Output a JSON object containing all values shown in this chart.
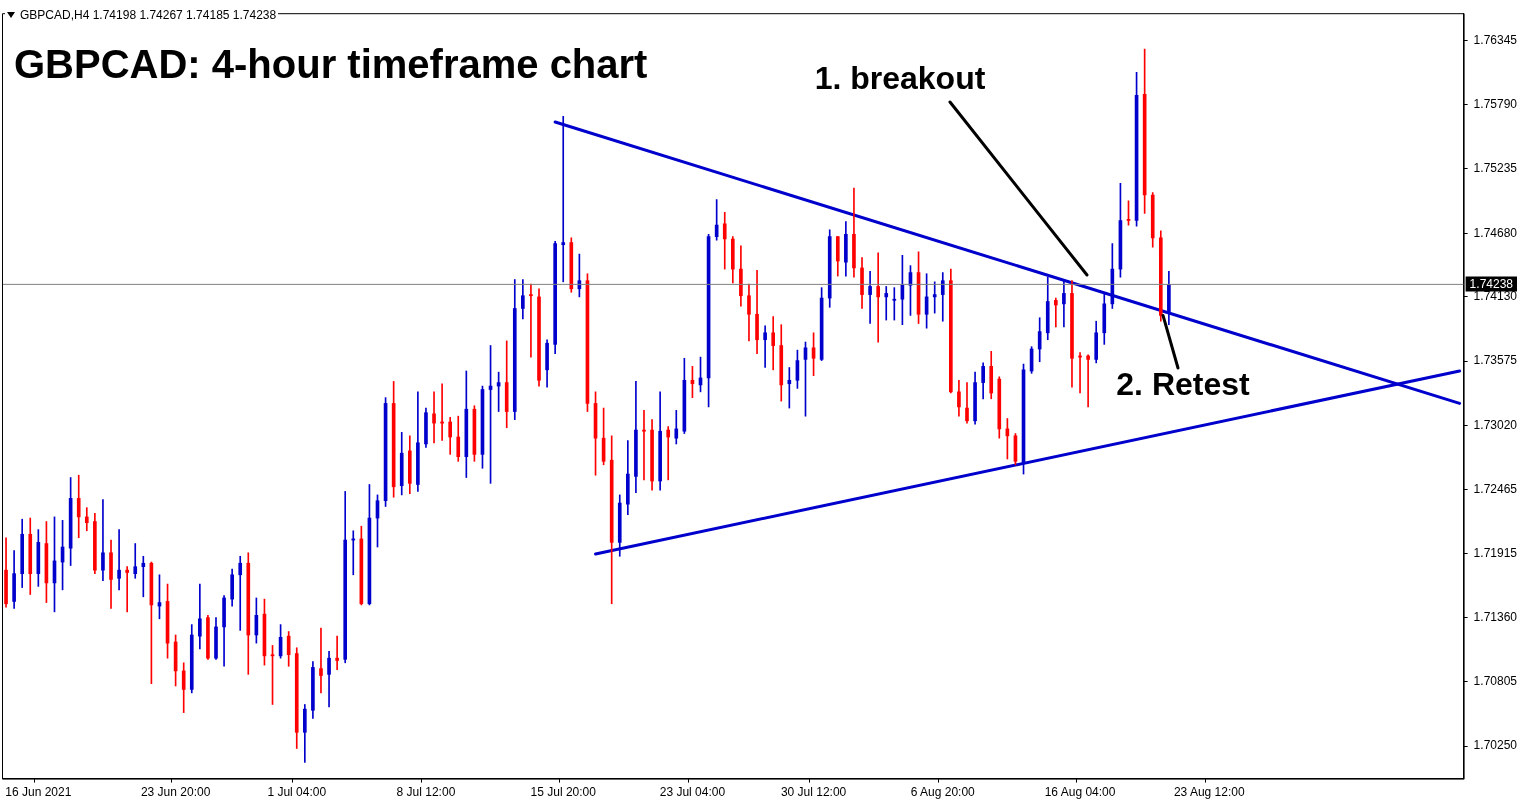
{
  "chart_data": {
    "type": "candlestick",
    "title": "GBPCAD: 4-hour timeframe chart",
    "annotations": [
      "GBPCAD,H4  1.74198 1.74267 1.74185 1.74238",
      "1. breakout",
      {
        "text": "2. Retest",
        "y": 1.7397
      }
    ],
    "categories": [
      null,
      null,
      null,
      null,
      "16 Jun 2021",
      null,
      null,
      null,
      null,
      null,
      null,
      null,
      null,
      null,
      null,
      null,
      null,
      null,
      null,
      null,
      null,
      "23 Jun 20:00",
      null,
      null,
      null,
      null,
      null,
      null,
      null,
      null,
      null,
      null,
      null,
      null,
      null,
      null,
      "1 Jul 04:00",
      null,
      null,
      null,
      null,
      null,
      null,
      null,
      null,
      null,
      null,
      null,
      null,
      null,
      null,
      null,
      "8 Jul 12:00",
      null,
      null,
      null,
      null,
      null,
      null,
      null,
      null,
      null,
      null,
      null,
      null,
      null,
      null,
      null,
      null,
      "15 Jul 20:00",
      null,
      null,
      null,
      null,
      null,
      null,
      null,
      null,
      null,
      null,
      null,
      null,
      null,
      null,
      null,
      "23 Jul 04:00",
      null,
      null,
      null,
      null,
      null,
      null,
      null,
      null,
      null,
      null,
      null,
      null,
      null,
      null,
      "30 Jul 12:00",
      null,
      null,
      null,
      null,
      null,
      null,
      null,
      null,
      null,
      null,
      null,
      null,
      null,
      null,
      null,
      "6 Aug 20:00",
      null,
      null,
      null,
      null,
      null,
      null,
      null,
      null,
      null,
      null,
      null,
      null,
      null,
      null,
      null,
      null,
      "16 Aug 04:00",
      null,
      null,
      null,
      null,
      null,
      null,
      null,
      null,
      null,
      null,
      null,
      null,
      null,
      null,
      null,
      "23 Aug 12:00",
      null,
      null,
      null,
      null,
      null,
      null,
      null,
      null,
      null,
      null,
      null,
      null,
      null,
      null,
      null,
      null,
      null,
      null,
      null,
      null,
      null,
      null,
      null,
      null,
      null,
      null,
      null,
      null,
      null,
      null,
      null
    ],
    "ohlc": [
      [
        1.7177,
        1.7205,
        1.7145,
        1.7148
      ],
      [
        1.715,
        1.7194,
        1.7144,
        1.7174
      ],
      [
        1.7174,
        1.7221,
        1.7162,
        1.7208
      ],
      [
        1.7208,
        1.7222,
        1.7156,
        1.7174
      ],
      [
        1.7174,
        1.7212,
        1.7163,
        1.7201
      ],
      [
        1.72,
        1.7219,
        1.7149,
        1.7166
      ],
      [
        1.7166,
        1.7223,
        1.7141,
        1.7185
      ],
      [
        1.7184,
        1.722,
        1.716,
        1.7197
      ],
      [
        1.7196,
        1.7257,
        1.7181,
        1.7239
      ],
      [
        1.7239,
        1.7259,
        1.7205,
        1.7223
      ],
      [
        1.7223,
        1.7231,
        1.7211,
        1.7218
      ],
      [
        1.7219,
        1.7226,
        1.7174,
        1.7177
      ],
      [
        1.7177,
        1.7238,
        1.7168,
        1.7192
      ],
      [
        1.7192,
        1.7203,
        1.7144,
        1.7169
      ],
      [
        1.717,
        1.7212,
        1.716,
        1.7177
      ],
      [
        1.7177,
        1.718,
        1.7141,
        1.7175
      ],
      [
        1.7174,
        1.72,
        1.717,
        1.718
      ],
      [
        1.718,
        1.7189,
        1.7154,
        1.7183
      ],
      [
        1.7183,
        1.7184,
        1.7079,
        1.7147
      ],
      [
        1.7146,
        1.7173,
        1.7135,
        1.7149
      ],
      [
        1.715,
        1.7165,
        1.7101,
        1.7114
      ],
      [
        1.7115,
        1.7121,
        1.7077,
        1.709
      ],
      [
        1.709,
        1.7097,
        1.7054,
        1.7074
      ],
      [
        1.7074,
        1.713,
        1.7071,
        1.7121
      ],
      [
        1.712,
        1.7165,
        1.7109,
        1.7135
      ],
      [
        1.7136,
        1.7138,
        1.71,
        1.7101
      ],
      [
        1.7101,
        1.7136,
        1.71,
        1.7128
      ],
      [
        1.7128,
        1.7155,
        1.7094,
        1.7153
      ],
      [
        1.7152,
        1.7178,
        1.7146,
        1.7173
      ],
      [
        1.7173,
        1.7189,
        1.7125,
        1.7183
      ],
      [
        1.7183,
        1.7192,
        1.7087,
        1.7121
      ],
      [
        1.7121,
        1.7153,
        1.7114,
        1.7138
      ],
      [
        1.7139,
        1.7152,
        1.7095,
        1.7103
      ],
      [
        1.7104,
        1.7112,
        1.7061,
        1.7103
      ],
      [
        1.7103,
        1.713,
        1.7101,
        1.7119
      ],
      [
        1.712,
        1.7124,
        1.7094,
        1.7104
      ],
      [
        1.7105,
        1.711,
        1.7023,
        1.7037
      ],
      [
        1.7037,
        1.7061,
        1.7011,
        1.7057
      ],
      [
        1.7056,
        1.7098,
        1.7049,
        1.7093
      ],
      [
        1.7092,
        1.7127,
        1.7071,
        1.7086
      ],
      [
        1.7087,
        1.7107,
        1.7059,
        1.7101
      ],
      [
        1.7101,
        1.712,
        1.7091,
        1.7099
      ],
      [
        1.71,
        1.7245,
        1.7097,
        1.7203
      ],
      [
        1.7203,
        1.7211,
        1.7173,
        1.7204
      ],
      [
        1.7204,
        1.7215,
        1.7147,
        1.7148
      ],
      [
        1.7148,
        1.7251,
        1.7147,
        1.7222
      ],
      [
        1.7222,
        1.7242,
        1.7197,
        1.7237
      ],
      [
        1.7237,
        1.7326,
        1.7232,
        1.7321
      ],
      [
        1.7321,
        1.734,
        1.724,
        1.7249
      ],
      [
        1.725,
        1.7296,
        1.7242,
        1.7278
      ],
      [
        1.728,
        1.7293,
        1.7243,
        1.7252
      ],
      [
        1.7251,
        1.7331,
        1.7245,
        1.7287
      ],
      [
        1.7286,
        1.7317,
        1.7283,
        1.7313
      ],
      [
        1.7312,
        1.7331,
        1.7287,
        1.7304
      ],
      [
        1.7305,
        1.7338,
        1.7289,
        1.7304
      ],
      [
        1.7305,
        1.7309,
        1.7277,
        1.7292
      ],
      [
        1.7292,
        1.731,
        1.7271,
        1.7275
      ],
      [
        1.7275,
        1.7349,
        1.7257,
        1.7316
      ],
      [
        1.7316,
        1.7319,
        1.7271,
        1.7277
      ],
      [
        1.7277,
        1.7336,
        1.7265,
        1.7333
      ],
      [
        1.7333,
        1.7371,
        1.7252,
        1.7336
      ],
      [
        1.7336,
        1.7348,
        1.7314,
        1.7339
      ],
      [
        1.7339,
        1.7375,
        1.73,
        1.7314
      ],
      [
        1.7314,
        1.7428,
        1.7307,
        1.7403
      ],
      [
        1.7403,
        1.7428,
        1.7394,
        1.7414
      ],
      [
        1.7415,
        1.7424,
        1.7361,
        1.7414
      ],
      [
        1.7413,
        1.742,
        1.7336,
        1.7341
      ],
      [
        1.735,
        1.7376,
        1.7335,
        1.7373
      ],
      [
        1.7372,
        1.7461,
        1.7364,
        1.7459
      ],
      [
        1.7458,
        1.7569,
        1.7426,
        1.746
      ],
      [
        1.746,
        1.7464,
        1.7417,
        1.742
      ],
      [
        1.742,
        1.745,
        1.7413,
        1.7427
      ],
      [
        1.7427,
        1.7433,
        1.7314,
        1.7321
      ],
      [
        1.7321,
        1.7331,
        1.7259,
        1.7291
      ],
      [
        1.7291,
        1.7317,
        1.7268,
        1.7271
      ],
      [
        1.7272,
        1.7293,
        1.7148,
        1.7201
      ],
      [
        1.7201,
        1.7242,
        1.7189,
        1.7235
      ],
      [
        1.7234,
        1.7289,
        1.7225,
        1.726
      ],
      [
        1.7258,
        1.734,
        1.7244,
        1.7298
      ],
      [
        1.7298,
        1.7315,
        1.7255,
        1.7297
      ],
      [
        1.7298,
        1.7307,
        1.7246,
        1.7254
      ],
      [
        1.7254,
        1.7331,
        1.7246,
        1.7297
      ],
      [
        1.7298,
        1.7301,
        1.7255,
        1.7292
      ],
      [
        1.7291,
        1.7315,
        1.7286,
        1.7299
      ],
      [
        1.7297,
        1.736,
        1.7295,
        1.7341
      ],
      [
        1.7341,
        1.7353,
        1.7326,
        1.7338
      ],
      [
        1.7337,
        1.7361,
        1.7331,
        1.7343
      ],
      [
        1.7343,
        1.7467,
        1.7318,
        1.7465
      ],
      [
        1.7465,
        1.7497,
        1.7462,
        1.7475
      ],
      [
        1.7476,
        1.7486,
        1.7437,
        1.7463
      ],
      [
        1.7463,
        1.7465,
        1.7425,
        1.7437
      ],
      [
        1.7437,
        1.7457,
        1.7405,
        1.7414
      ],
      [
        1.7414,
        1.7424,
        1.7375,
        1.7398
      ],
      [
        1.7398,
        1.7436,
        1.7364,
        1.7376
      ],
      [
        1.7376,
        1.7388,
        1.7352,
        1.7382
      ],
      [
        1.7382,
        1.7396,
        1.735,
        1.7371
      ],
      [
        1.7371,
        1.7389,
        1.7323,
        1.7337
      ],
      [
        1.7338,
        1.7352,
        1.7317,
        1.7341
      ],
      [
        1.7341,
        1.7367,
        1.7334,
        1.7358
      ],
      [
        1.7359,
        1.7374,
        1.731,
        1.7369
      ],
      [
        1.7369,
        1.7382,
        1.7345,
        1.736
      ],
      [
        1.7359,
        1.7421,
        1.7358,
        1.7412
      ],
      [
        1.7412,
        1.7471,
        1.7404,
        1.7465
      ],
      [
        1.7465,
        1.7465,
        1.7431,
        1.7444
      ],
      [
        1.7443,
        1.7478,
        1.7431,
        1.7467
      ],
      [
        1.7467,
        1.7507,
        1.743,
        1.7438
      ],
      [
        1.7438,
        1.7447,
        1.7403,
        1.7415
      ],
      [
        1.7415,
        1.7435,
        1.739,
        1.7422
      ],
      [
        1.7422,
        1.7451,
        1.7374,
        1.7413
      ],
      [
        1.7413,
        1.7422,
        1.7393,
        1.7416
      ],
      [
        1.741,
        1.7421,
        1.7393,
        1.7411
      ],
      [
        1.7411,
        1.7449,
        1.7389,
        1.7423
      ],
      [
        1.7423,
        1.744,
        1.7397,
        1.7434
      ],
      [
        1.7434,
        1.7452,
        1.739,
        1.7398
      ],
      [
        1.7398,
        1.7433,
        1.7386,
        1.7413
      ],
      [
        1.7413,
        1.7426,
        1.7399,
        1.7415
      ],
      [
        1.7415,
        1.7434,
        1.7392,
        1.7427
      ],
      [
        1.7427,
        1.7437,
        1.733,
        1.7331
      ],
      [
        1.7331,
        1.7341,
        1.731,
        1.7318
      ],
      [
        1.7317,
        1.7339,
        1.7304,
        1.7306
      ],
      [
        1.7306,
        1.7348,
        1.7303,
        1.7339
      ],
      [
        1.7339,
        1.7356,
        1.7325,
        1.7353
      ],
      [
        1.7353,
        1.7366,
        1.7325,
        1.733
      ],
      [
        1.7342,
        1.7344,
        1.7291,
        1.7299
      ],
      [
        1.7299,
        1.7308,
        1.7273,
        1.7293
      ],
      [
        1.7293,
        1.7295,
        1.7268,
        1.7271
      ],
      [
        1.7269,
        1.7355,
        1.726,
        1.735
      ],
      [
        1.7349,
        1.737,
        1.7347,
        1.7368
      ],
      [
        1.7368,
        1.7395,
        1.7357,
        1.7383
      ],
      [
        1.7382,
        1.743,
        1.7376,
        1.7409
      ],
      [
        1.741,
        1.7412,
        1.7387,
        1.7406
      ],
      [
        1.7407,
        1.7427,
        1.7387,
        1.7416
      ],
      [
        1.7416,
        1.7427,
        1.7335,
        1.736
      ],
      [
        1.7362,
        1.7365,
        1.733,
        1.7361
      ],
      [
        1.7362,
        1.7363,
        1.7318,
        1.7359
      ],
      [
        1.7359,
        1.7392,
        1.7356,
        1.7382
      ],
      [
        1.7382,
        1.7416,
        1.7372,
        1.7407
      ],
      [
        1.7407,
        1.7459,
        1.7403,
        1.7437
      ],
      [
        1.7437,
        1.7511,
        1.743,
        1.7479
      ],
      [
        1.748,
        1.7496,
        1.7475,
        1.7479
      ],
      [
        1.7479,
        1.7607,
        1.7474,
        1.7587
      ],
      [
        1.7588,
        1.7627,
        1.7485,
        1.7501
      ],
      [
        1.7501,
        1.7503,
        1.7456,
        1.7464
      ],
      [
        1.7464,
        1.747,
        1.7392,
        1.7397
      ],
      [
        1.7399,
        1.7435,
        1.7389,
        1.74238
      ],
      null,
      null,
      null,
      null,
      null,
      null,
      null,
      null,
      null,
      null,
      null,
      null,
      null,
      null,
      null,
      null,
      null,
      null,
      null,
      null,
      null,
      null,
      null,
      null,
      null,
      null,
      null,
      null,
      null,
      null,
      null,
      null,
      null,
      null,
      null,
      null
    ],
    "colors": [
      "#ff0000",
      "#0000cd",
      "#0000cd",
      "#ff0000",
      "#0000cd",
      "#ff0000",
      "#0000cd",
      "#0000cd",
      "#0000cd",
      "#ff0000",
      "#ff0000",
      "#ff0000",
      "#0000cd",
      "#ff0000",
      "#0000cd",
      "#ff0000",
      "#0000cd",
      "#0000cd",
      "#ff0000",
      "#0000cd",
      "#ff0000",
      "#ff0000",
      "#ff0000",
      "#0000cd",
      "#0000cd",
      "#ff0000",
      "#0000cd",
      "#0000cd",
      "#0000cd",
      "#0000cd",
      "#ff0000",
      "#0000cd",
      "#ff0000",
      "#ff0000",
      "#0000cd",
      "#ff0000",
      "#ff0000",
      "#0000cd",
      "#0000cd",
      "#ff0000",
      "#0000cd",
      "#ff0000",
      "#0000cd",
      "#0000cd",
      "#ff0000",
      "#0000cd",
      "#0000cd",
      "#0000cd",
      "#ff0000",
      "#0000cd",
      "#ff0000",
      "#0000cd",
      "#0000cd",
      "#ff0000",
      "#ff0000",
      "#ff0000",
      "#ff0000",
      "#0000cd",
      "#ff0000",
      "#0000cd",
      "#0000cd",
      "#0000cd",
      "#ff0000",
      "#0000cd",
      "#0000cd",
      "#ff0000",
      "#ff0000",
      "#0000cd",
      "#0000cd",
      "#0000cd",
      "#ff0000",
      "#0000cd",
      "#ff0000",
      "#ff0000",
      "#ff0000",
      "#ff0000",
      "#0000cd",
      "#0000cd",
      "#0000cd",
      "#ff0000",
      "#ff0000",
      "#0000cd",
      "#ff0000",
      "#0000cd",
      "#0000cd",
      "#ff0000",
      "#0000cd",
      "#0000cd",
      "#0000cd",
      "#ff0000",
      "#ff0000",
      "#ff0000",
      "#ff0000",
      "#ff0000",
      "#0000cd",
      "#ff0000",
      "#ff0000",
      "#0000cd",
      "#0000cd",
      "#0000cd",
      "#ff0000",
      "#0000cd",
      "#0000cd",
      "#ff0000",
      "#0000cd",
      "#ff0000",
      "#ff0000",
      "#0000cd",
      "#ff0000",
      "#0000cd",
      "#0000cd",
      "#0000cd",
      "#0000cd",
      "#ff0000",
      "#0000cd",
      "#0000cd",
      "#0000cd",
      "#ff0000",
      "#ff0000",
      "#ff0000",
      "#0000cd",
      "#0000cd",
      "#ff0000",
      "#ff0000",
      "#ff0000",
      "#ff0000",
      "#0000cd",
      "#0000cd",
      "#0000cd",
      "#0000cd",
      "#ff0000",
      "#0000cd",
      "#ff0000",
      "#ff0000",
      "#ff0000",
      "#0000cd",
      "#0000cd",
      "#0000cd",
      "#0000cd",
      "#ff0000",
      "#0000cd",
      "#ff0000",
      "#ff0000",
      "#ff0000",
      "#0000cd",
      null,
      null,
      null,
      null,
      null,
      null,
      null,
      null,
      null,
      null,
      null,
      null,
      null,
      null,
      null,
      null,
      null,
      null,
      null,
      null,
      null,
      null,
      null,
      null,
      null,
      null,
      null,
      null,
      null,
      null,
      null,
      null,
      null,
      null,
      null,
      null
    ],
    "series": [
      {
        "type": "line",
        "values": [
          null,
          null,
          null,
          null,
          null,
          null,
          null,
          null,
          null,
          null,
          null,
          null,
          null,
          null,
          null,
          null,
          null,
          null,
          null,
          null,
          null,
          null,
          null,
          null,
          null,
          null,
          null,
          null,
          null,
          null,
          null,
          null,
          null,
          null,
          null,
          null,
          null,
          null,
          null,
          null,
          null,
          null,
          null,
          null,
          null,
          null,
          null,
          null,
          null,
          null,
          null,
          null,
          null,
          null,
          null,
          null,
          null,
          null,
          null,
          null,
          null,
          null,
          null,
          null,
          null,
          null,
          null,
          null,
          1.7564,
          null,
          null,
          null,
          null,
          null,
          null,
          null,
          null,
          null,
          null,
          null,
          null,
          null,
          null,
          null,
          null,
          null,
          null,
          null,
          null,
          null,
          null,
          null,
          null,
          null,
          null,
          null,
          null,
          null,
          null,
          null,
          null,
          null,
          null,
          null,
          null,
          null,
          null,
          null,
          null,
          null,
          null,
          null,
          null,
          null,
          null,
          null,
          null,
          null,
          null,
          null,
          null,
          null,
          null,
          null,
          null,
          null,
          null,
          null,
          null,
          null,
          null,
          null,
          null,
          null,
          null,
          null,
          null,
          null,
          null,
          null,
          null,
          null,
          null,
          null,
          null,
          null,
          null,
          null,
          null,
          null,
          null,
          null,
          null,
          null,
          null,
          null,
          null,
          null,
          null,
          null,
          null,
          null,
          null,
          null,
          null,
          null,
          null,
          null,
          null,
          null,
          null,
          null,
          null,
          null,
          null,
          null,
          null,
          null,
          null,
          null,
          1.7321
        ],
        "color": "#0000cd"
      },
      {
        "type": "line",
        "values": [
          null,
          null,
          null,
          null,
          null,
          null,
          null,
          null,
          null,
          null,
          null,
          null,
          null,
          null,
          null,
          null,
          null,
          null,
          null,
          null,
          null,
          null,
          null,
          null,
          null,
          null,
          null,
          null,
          null,
          null,
          null,
          null,
          null,
          null,
          null,
          null,
          null,
          null,
          null,
          null,
          null,
          null,
          null,
          null,
          null,
          null,
          null,
          null,
          null,
          null,
          null,
          null,
          null,
          null,
          null,
          null,
          null,
          null,
          null,
          null,
          null,
          null,
          null,
          null,
          null,
          null,
          null,
          null,
          null,
          null,
          null,
          null,
          null,
          1.7191,
          null,
          null,
          null,
          null,
          null,
          null,
          null,
          null,
          null,
          null,
          null,
          null,
          null,
          null,
          null,
          null,
          null,
          null,
          null,
          null,
          null,
          null,
          null,
          null,
          null,
          null,
          null,
          null,
          null,
          null,
          null,
          null,
          null,
          null,
          null,
          null,
          null,
          null,
          null,
          null,
          null,
          null,
          null,
          null,
          null,
          null,
          null,
          null,
          null,
          null,
          null,
          null,
          null,
          null,
          null,
          null,
          null,
          null,
          null,
          null,
          null,
          null,
          null,
          null,
          null,
          null,
          null,
          null,
          null,
          null,
          null,
          null,
          null,
          null,
          null,
          null,
          null,
          null,
          null,
          null,
          null,
          null,
          null,
          null,
          null,
          null,
          null,
          null,
          null,
          null,
          null,
          null,
          null,
          null,
          null,
          null,
          null,
          null,
          null,
          null,
          null,
          null,
          null,
          null,
          null,
          null,
          1.7349
        ],
        "color": "#0000cd"
      }
    ],
    "ref_lines": [
      {
        "axis": "y",
        "value": 1.74238,
        "label": "1.74238",
        "color": "#808080"
      }
    ],
    "ylim": [
      1.6997,
      1.7658
    ],
    "yticks": [
      {
        "value": 1.7025,
        "label": "1.70250"
      },
      {
        "value": 1.70805,
        "label": "1.70805"
      },
      {
        "value": 1.7136,
        "label": "1.71360"
      },
      {
        "value": 1.71915,
        "label": "1.71915"
      },
      {
        "value": 1.72465,
        "label": "1.72465"
      },
      {
        "value": 1.7302,
        "label": "1.73020"
      },
      {
        "value": 1.73575,
        "label": "1.73575"
      },
      {
        "value": 1.7413,
        "label": "1.74130"
      },
      {
        "value": 1.7468,
        "label": "1.74680"
      },
      {
        "value": 1.75235,
        "label": "1.75235"
      },
      {
        "value": 1.7579,
        "label": "1.75790"
      },
      {
        "value": 1.76345,
        "label": "1.76345"
      }
    ],
    "grid": false,
    "legend": false
  }
}
